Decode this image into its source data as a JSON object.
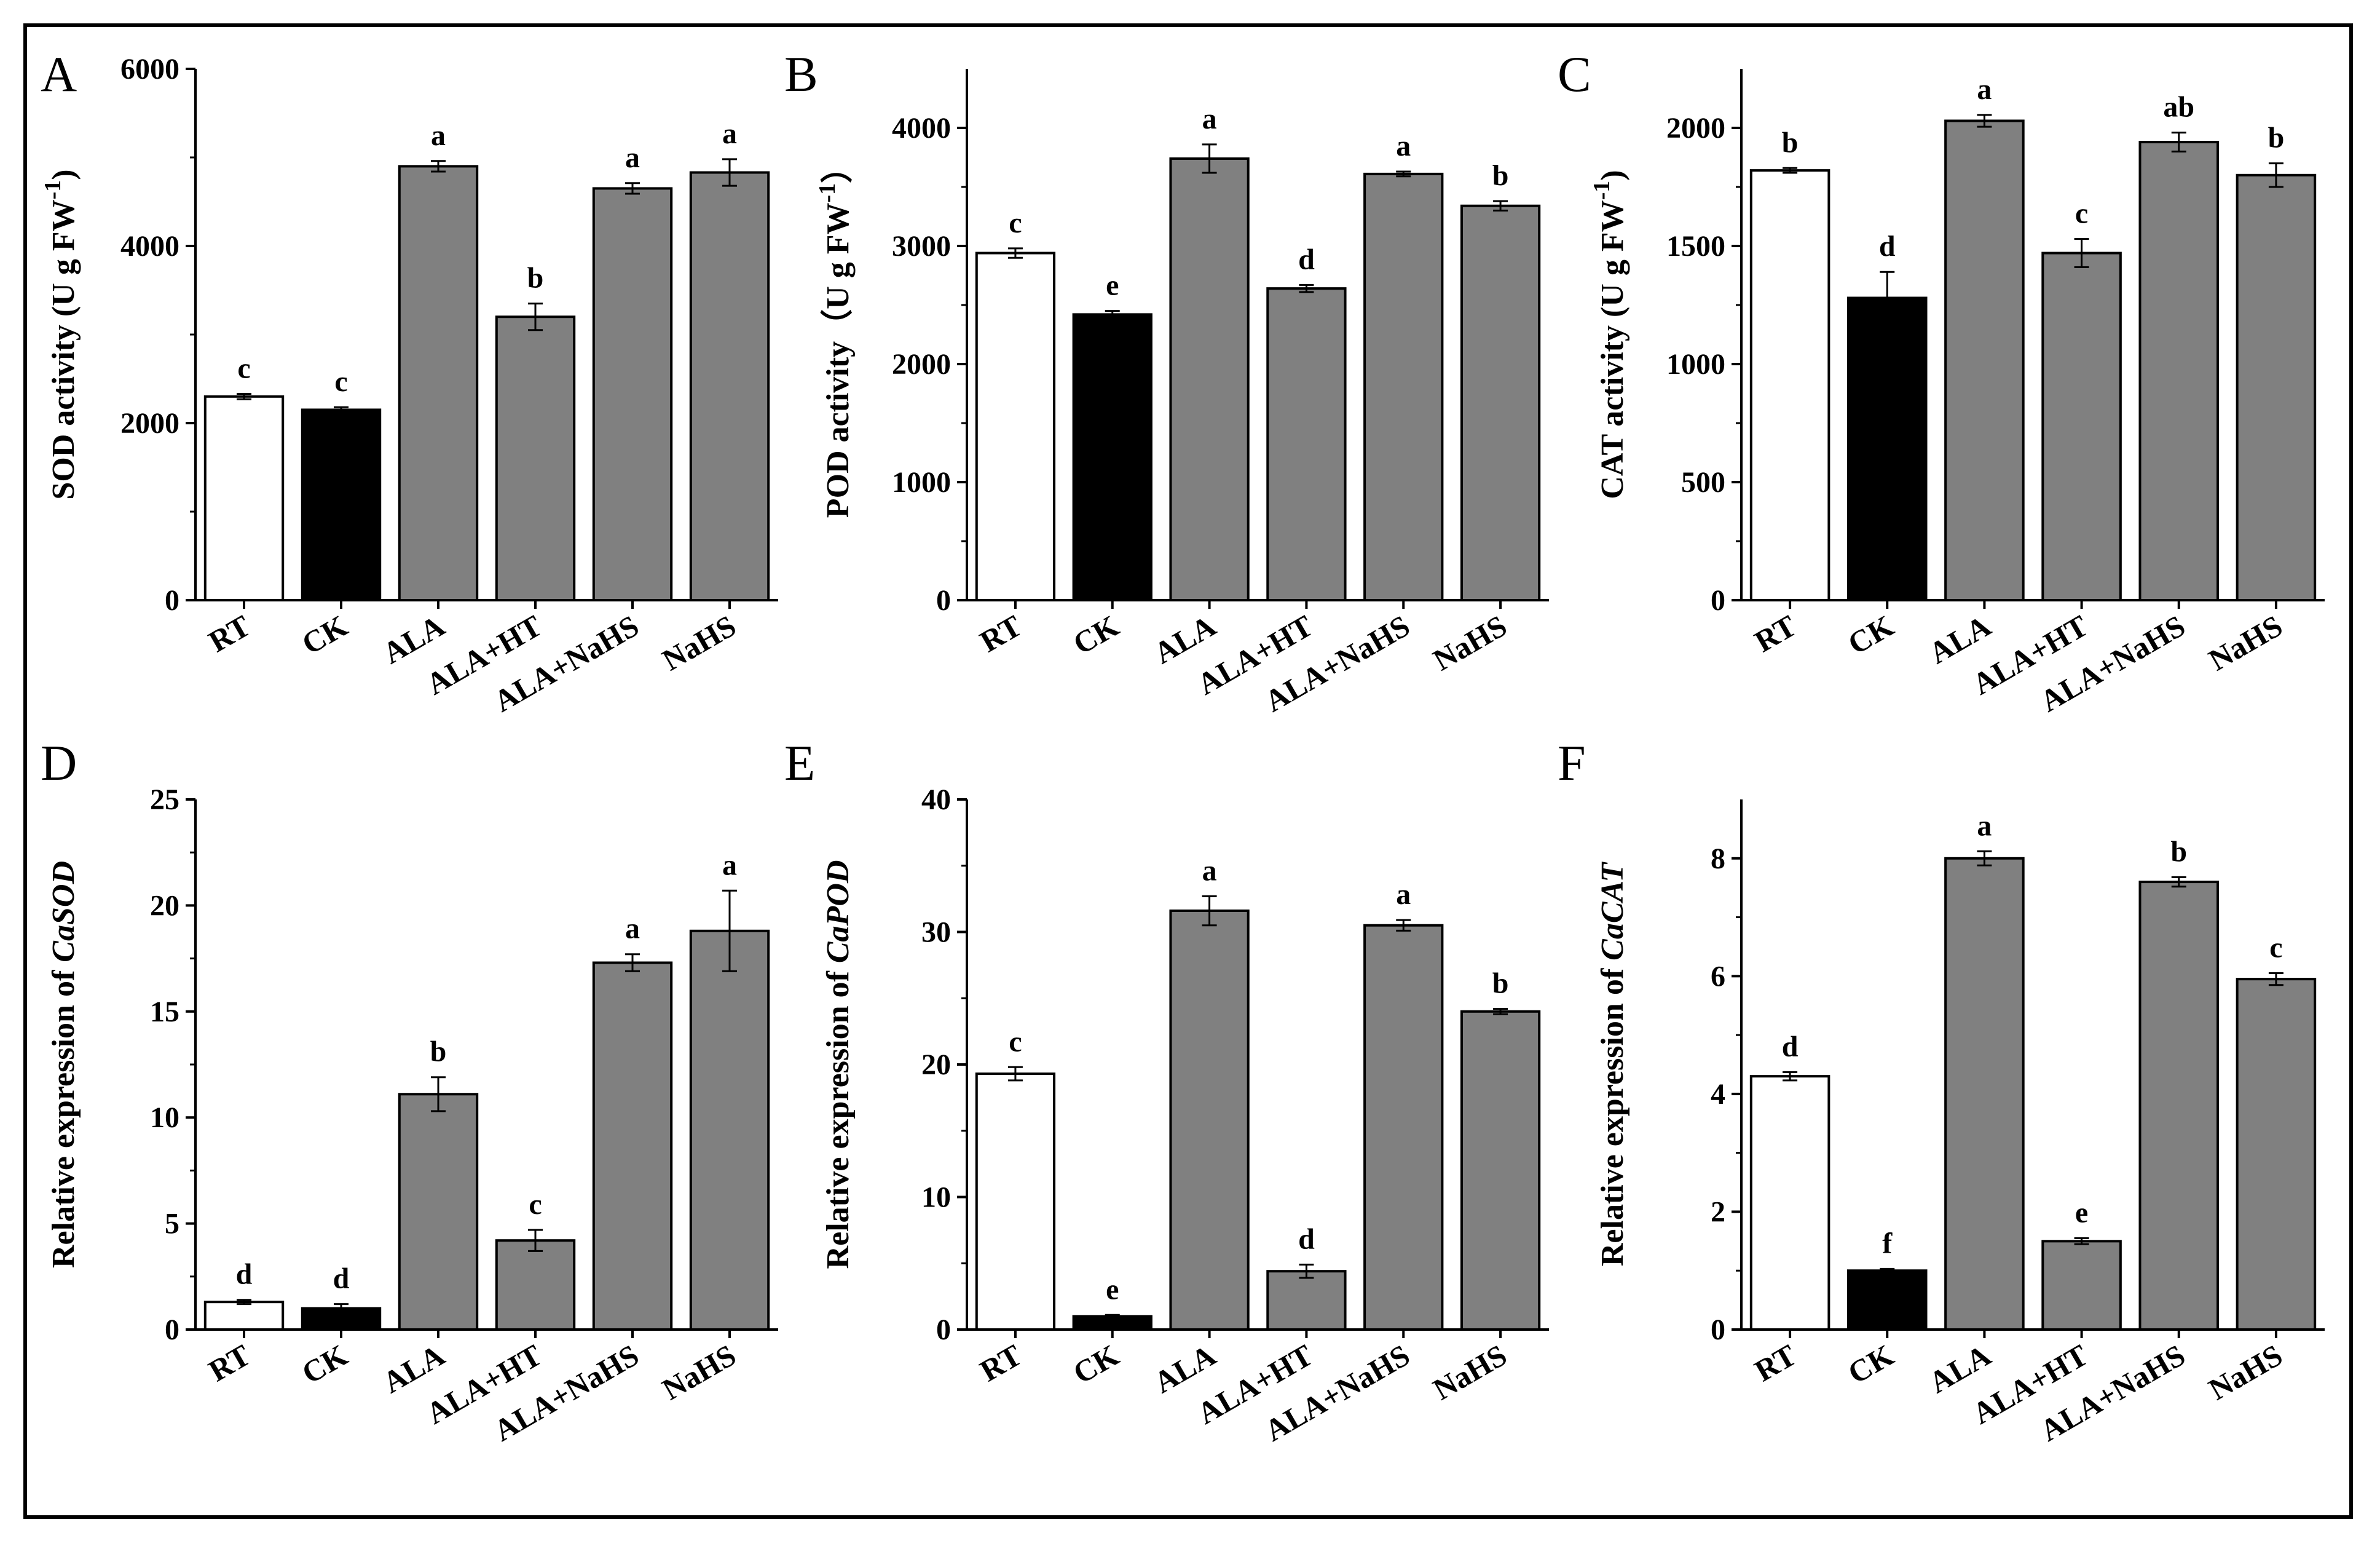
{
  "colors": {
    "RT": "#ffffff",
    "CK": "#000000",
    "treatment": "#808080",
    "axis": "#000000"
  },
  "chart_data": [
    {
      "panel": "A",
      "type": "bar",
      "ylabel": "SOD activity (U g FW⁻¹)",
      "ylabel_parts": [
        "SOD activity",
        " (U g FW",
        "-1",
        ")"
      ],
      "ylabel_italic": false,
      "categories": [
        "RT",
        "CK",
        "ALA",
        "ALA+HT",
        "ALA+NaHS",
        "NaHS"
      ],
      "values": [
        2300,
        2150,
        4900,
        3200,
        4650,
        4830
      ],
      "errors": [
        30,
        30,
        60,
        150,
        60,
        150
      ],
      "significance": [
        "c",
        "c",
        "a",
        "b",
        "a",
        "a"
      ],
      "ylim": [
        0,
        6000
      ],
      "ticks": [
        0,
        2000,
        4000,
        6000
      ],
      "tick_labels": [
        "0",
        "2000",
        "4000",
        "6000"
      ]
    },
    {
      "panel": "B",
      "type": "bar",
      "ylabel": "POD activity（U g FW⁻¹）",
      "ylabel_parts": [
        "POD activity",
        "（U g FW",
        "-1",
        "）"
      ],
      "ylabel_italic": false,
      "categories": [
        "RT",
        "CK",
        "ALA",
        "ALA+HT",
        "ALA+NaHS",
        "NaHS"
      ],
      "values": [
        2940,
        2420,
        3740,
        2640,
        3610,
        3340
      ],
      "errors": [
        40,
        30,
        120,
        30,
        20,
        40
      ],
      "significance": [
        "c",
        "e",
        "a",
        "d",
        "a",
        "b"
      ],
      "ylim": [
        0,
        4500
      ],
      "ticks": [
        0,
        1000,
        2000,
        3000,
        4000
      ],
      "tick_labels": [
        "0",
        "1000",
        "2000",
        "3000",
        "4000"
      ]
    },
    {
      "panel": "C",
      "type": "bar",
      "ylabel": "CAT activity (U g FW⁻¹)",
      "ylabel_parts": [
        "CAT activity",
        " (U g FW",
        "-1",
        ")"
      ],
      "ylabel_italic": false,
      "categories": [
        "RT",
        "CK",
        "ALA",
        "ALA+HT",
        "ALA+NaHS",
        "NaHS"
      ],
      "values": [
        1820,
        1280,
        2030,
        1470,
        1940,
        1800
      ],
      "errors": [
        10,
        110,
        25,
        60,
        40,
        50
      ],
      "significance": [
        "b",
        "d",
        "a",
        "c",
        "ab",
        "b"
      ],
      "ylim": [
        0,
        2250
      ],
      "ticks": [
        0,
        500,
        1000,
        1500,
        2000
      ],
      "tick_labels": [
        "0",
        "500",
        "1000",
        "1500",
        "2000"
      ]
    },
    {
      "panel": "D",
      "type": "bar",
      "ylabel": "Relative expression of CaSOD",
      "ylabel_parts": [
        "Relative expression of ",
        "CaSOD"
      ],
      "ylabel_italic": true,
      "categories": [
        "RT",
        "CK",
        "ALA",
        "ALA+HT",
        "ALA+NaHS",
        "NaHS"
      ],
      "values": [
        1.3,
        1.0,
        11.1,
        4.2,
        17.3,
        18.8
      ],
      "errors": [
        0.1,
        0.2,
        0.8,
        0.5,
        0.4,
        1.9
      ],
      "significance": [
        "d",
        "d",
        "b",
        "c",
        "a",
        "a"
      ],
      "ylim": [
        0,
        25
      ],
      "ticks": [
        0,
        5,
        10,
        15,
        20,
        25
      ],
      "tick_labels": [
        "0",
        "5",
        "10",
        "15",
        "20",
        "25"
      ]
    },
    {
      "panel": "E",
      "type": "bar",
      "ylabel": "Relative expression of CaPOD",
      "ylabel_parts": [
        "Relative expression of ",
        "CaPOD"
      ],
      "ylabel_italic": true,
      "categories": [
        "RT",
        "CK",
        "ALA",
        "ALA+HT",
        "ALA+NaHS",
        "NaHS"
      ],
      "values": [
        19.3,
        1.0,
        31.6,
        4.4,
        30.5,
        24.0
      ],
      "errors": [
        0.5,
        0.1,
        1.1,
        0.5,
        0.4,
        0.2
      ],
      "significance": [
        "c",
        "e",
        "a",
        "d",
        "a",
        "b"
      ],
      "ylim": [
        0,
        40
      ],
      "ticks": [
        0,
        10,
        20,
        30,
        40
      ],
      "tick_labels": [
        "0",
        "10",
        "20",
        "30",
        "40"
      ]
    },
    {
      "panel": "F",
      "type": "bar",
      "ylabel": "Relative expression of CaCAT",
      "ylabel_parts": [
        "Relative expression of ",
        "CaCAT"
      ],
      "ylabel_italic": true,
      "categories": [
        "RT",
        "CK",
        "ALA",
        "ALA+HT",
        "ALA+NaHS",
        "NaHS"
      ],
      "values": [
        4.3,
        1.0,
        8.0,
        1.5,
        7.6,
        5.95
      ],
      "errors": [
        0.07,
        0.03,
        0.12,
        0.05,
        0.08,
        0.1
      ],
      "significance": [
        "d",
        "f",
        "a",
        "e",
        "b",
        "c"
      ],
      "ylim": [
        0,
        9
      ],
      "ticks": [
        0,
        2,
        4,
        6,
        8
      ],
      "tick_labels": [
        "0",
        "2",
        "4",
        "6",
        "8"
      ]
    }
  ]
}
